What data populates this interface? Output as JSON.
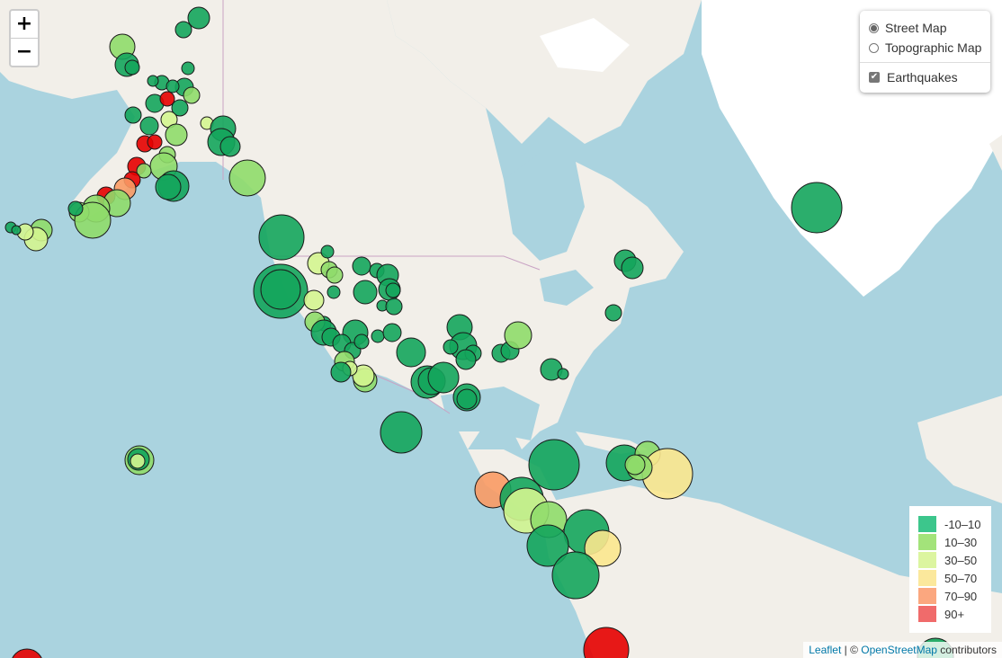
{
  "map": {
    "colors": {
      "water": "#aad3df",
      "land": "#f2efe9",
      "ice": "#ffffff",
      "border": "#c9a3c4"
    },
    "marker_stroke": "#1a1a1a"
  },
  "zoom_control": {
    "zoom_in_label": "+",
    "zoom_out_label": "−"
  },
  "layer_control": {
    "base_layers": [
      {
        "label": "Street Map",
        "selected": true
      },
      {
        "label": "Topographic Map",
        "selected": false
      }
    ],
    "overlays": [
      {
        "label": "Earthquakes",
        "checked": true
      }
    ]
  },
  "legend": {
    "items": [
      {
        "label": "-10–10",
        "color": "#3cc68c"
      },
      {
        "label": "10–30",
        "color": "#a3e37a"
      },
      {
        "label": "30–50",
        "color": "#dcf5a0"
      },
      {
        "label": "50–70",
        "color": "#fbe89c"
      },
      {
        "label": "70–90",
        "color": "#fba77f"
      },
      {
        "label": "90+",
        "color": "#f06b6b"
      }
    ]
  },
  "attribution": {
    "leaflet": "Leaflet",
    "separator": " | © ",
    "osm": "OpenStreetMap",
    "suffix": " contributors"
  },
  "depth_colors": {
    "d10": "#14a55c",
    "d30": "#8fdc6a",
    "d50": "#d4f590",
    "d70": "#fbe78e",
    "d90": "#f99a64",
    "d90p": "#e60000"
  }
}
